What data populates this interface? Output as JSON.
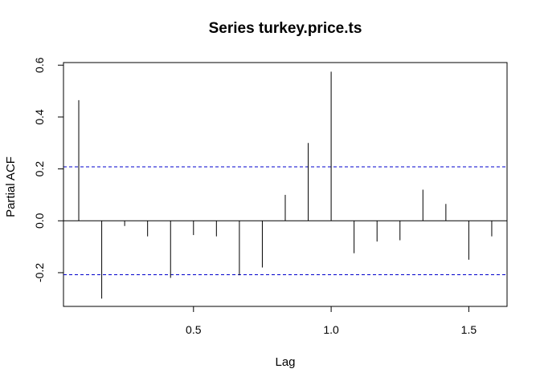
{
  "chart_data": {
    "type": "bar",
    "title": "Series  turkey.price.ts",
    "xlabel": "Lag",
    "ylabel": "Partial ACF",
    "xlim": [
      0.0278,
      1.6389
    ],
    "ylim": [
      -0.33,
      0.61
    ],
    "x_ticks": [
      {
        "value": 0.5,
        "label": "0.5"
      },
      {
        "value": 1.0,
        "label": "1.0"
      },
      {
        "value": 1.5,
        "label": "1.5"
      }
    ],
    "y_ticks": [
      {
        "value": -0.2,
        "label": "-0.2"
      },
      {
        "value": 0.0,
        "label": "0.0"
      },
      {
        "value": 0.2,
        "label": "0.2"
      },
      {
        "value": 0.4,
        "label": "0.4"
      },
      {
        "value": 0.6,
        "label": "0.6"
      }
    ],
    "confidence_bound": 0.208,
    "confidence_color": "#0000cc",
    "lags": [
      0.0833,
      0.1667,
      0.25,
      0.3333,
      0.4167,
      0.5,
      0.5833,
      0.6667,
      0.75,
      0.8333,
      0.9167,
      1.0,
      1.0833,
      1.1667,
      1.25,
      1.3333,
      1.4167,
      1.5,
      1.5833
    ],
    "values": [
      0.465,
      -0.3,
      -0.02,
      -0.06,
      -0.22,
      -0.055,
      -0.06,
      -0.21,
      -0.18,
      0.1,
      0.3,
      0.575,
      -0.125,
      -0.08,
      -0.075,
      0.12,
      0.065,
      -0.15,
      -0.06
    ]
  }
}
